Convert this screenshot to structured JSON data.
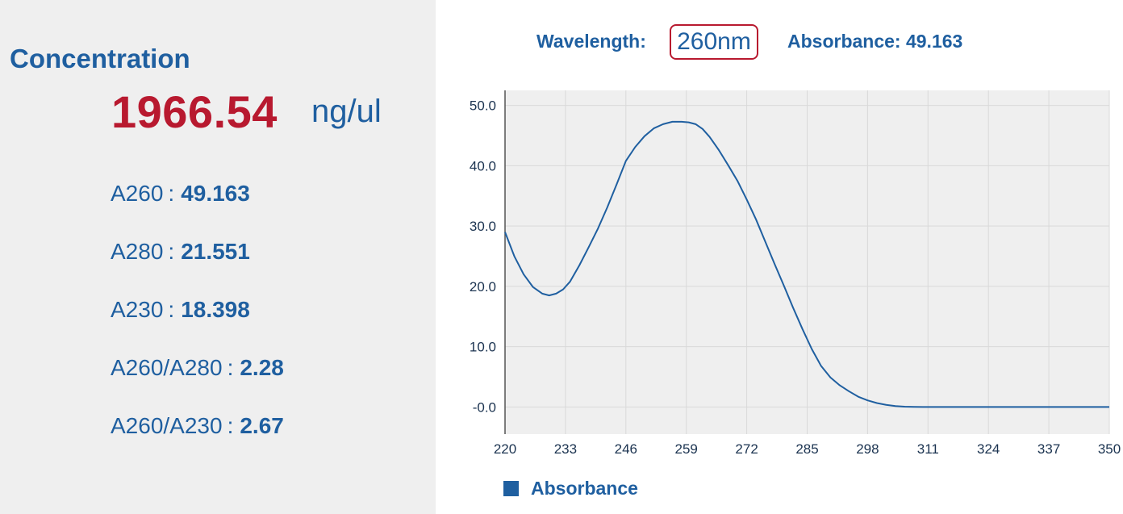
{
  "concentration": {
    "title": "Concentration",
    "value": "1966.54",
    "unit": "ng/ul"
  },
  "metrics": [
    {
      "label": "A260",
      "value": "49.163"
    },
    {
      "label": "A280",
      "value": "21.551"
    },
    {
      "label": "A230",
      "value": "18.398"
    },
    {
      "label": "A260/A280",
      "value": "2.28"
    },
    {
      "label": "A260/A230",
      "value": "2.67"
    }
  ],
  "header": {
    "wavelength_label": "Wavelength:",
    "wavelength_value": "260nm",
    "absorbance_text": "Absorbance: 49.163"
  },
  "colors": {
    "accent": "#1f5fa0",
    "highlight": "#b8192f",
    "panel_bg": "#efefef",
    "plot_bg": "#efefef",
    "grid": "#d9d9d9"
  },
  "chart_data": {
    "type": "line",
    "title": "",
    "xlabel": "",
    "ylabel": "",
    "xlim": [
      220,
      350
    ],
    "ylim": [
      -4.5,
      52.5
    ],
    "x_ticks": [
      220,
      233,
      246,
      259,
      272,
      285,
      298,
      311,
      324,
      337,
      350
    ],
    "y_ticks": [
      {
        "value": 0,
        "label": "-0.0"
      },
      {
        "value": 10,
        "label": "10.0"
      },
      {
        "value": 20,
        "label": "20.0"
      },
      {
        "value": 30,
        "label": "30.0"
      },
      {
        "value": 40,
        "label": "40.0"
      },
      {
        "value": 50,
        "label": "50.0"
      }
    ],
    "grid": true,
    "legend_position": "bottom-left",
    "series": [
      {
        "name": "Absorbance",
        "color": "#1f5fa0",
        "x": [
          220,
          222,
          224,
          226,
          228,
          229.5,
          231,
          232.5,
          234,
          236,
          238,
          240,
          242,
          244,
          246,
          248,
          250,
          252,
          254,
          256,
          258,
          259.5,
          261,
          262.5,
          264,
          266,
          268,
          270,
          272,
          274,
          276,
          278,
          280,
          282,
          284,
          286,
          288,
          290,
          292,
          294,
          296,
          298,
          300,
          302,
          304,
          306,
          308,
          310,
          312,
          316,
          320,
          324,
          330,
          337,
          344,
          350
        ],
        "y": [
          29,
          25,
          22,
          19.9,
          18.8,
          18.5,
          18.8,
          19.5,
          20.8,
          23.5,
          26.5,
          29.6,
          33.1,
          36.9,
          40.8,
          43.1,
          44.9,
          46.2,
          46.9,
          47.3,
          47.3,
          47.2,
          46.9,
          46.1,
          44.8,
          42.6,
          40.1,
          37.5,
          34.4,
          31.1,
          27.4,
          23.7,
          20.1,
          16.4,
          12.9,
          9.6,
          6.8,
          4.9,
          3.6,
          2.6,
          1.7,
          1.1,
          0.65,
          0.35,
          0.15,
          0.05,
          0.02,
          0,
          0,
          0,
          0,
          0,
          0,
          0,
          0,
          0
        ]
      }
    ]
  }
}
